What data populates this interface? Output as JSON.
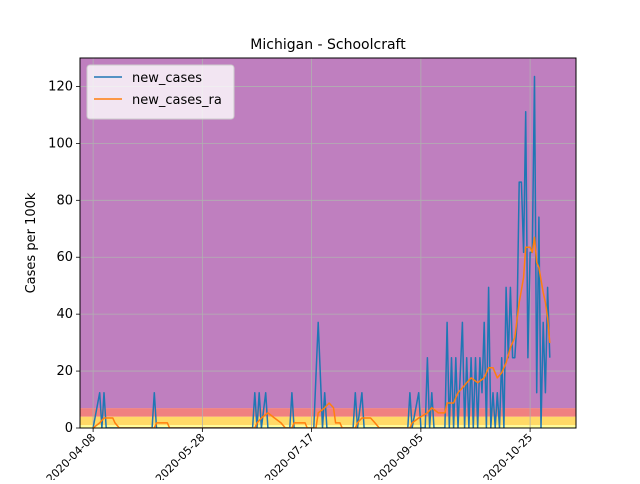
{
  "chart_data": {
    "type": "line",
    "title": "Michigan - Schoolcraft",
    "xlabel": "",
    "ylabel": "Cases per 100k",
    "x_start": "2020-04-02",
    "x_end": "2020-11-15",
    "ylim": [
      0,
      130
    ],
    "grid": true,
    "legend_position": "top-left",
    "x_ticks": [
      "2020-04-08",
      "2020-05-28",
      "2020-07-17",
      "2020-09-05",
      "2020-10-25"
    ],
    "y_ticks": [
      0,
      20,
      40,
      60,
      80,
      100,
      120
    ],
    "bands": [
      {
        "from": 0,
        "to": 1,
        "color": "#ffff99"
      },
      {
        "from": 1,
        "to": 4,
        "color": "#ffd966"
      },
      {
        "from": 4,
        "to": 7,
        "color": "#f08080"
      },
      {
        "from": 7,
        "to": 130,
        "color": "#bf7fbf"
      }
    ],
    "series": [
      {
        "name": "new_cases",
        "color": "#1f77b4",
        "points": [
          [
            "2020-04-08",
            0
          ],
          [
            "2020-04-11",
            12.4
          ],
          [
            "2020-04-12",
            0
          ],
          [
            "2020-04-13",
            12.4
          ],
          [
            "2020-04-14",
            0
          ],
          [
            "2020-05-05",
            0
          ],
          [
            "2020-05-06",
            12.4
          ],
          [
            "2020-05-07",
            0
          ],
          [
            "2020-06-20",
            0
          ],
          [
            "2020-06-21",
            12.4
          ],
          [
            "2020-06-22",
            0
          ],
          [
            "2020-06-23",
            12.4
          ],
          [
            "2020-06-24",
            0
          ],
          [
            "2020-06-26",
            12.4
          ],
          [
            "2020-06-27",
            0
          ],
          [
            "2020-07-07",
            0
          ],
          [
            "2020-07-08",
            12.4
          ],
          [
            "2020-07-09",
            0
          ],
          [
            "2020-07-18",
            0
          ],
          [
            "2020-07-20",
            37.1
          ],
          [
            "2020-07-22",
            0
          ],
          [
            "2020-07-23",
            12.4
          ],
          [
            "2020-07-24",
            0
          ],
          [
            "2020-08-05",
            0
          ],
          [
            "2020-08-06",
            12.4
          ],
          [
            "2020-08-07",
            0
          ],
          [
            "2020-08-09",
            12.4
          ],
          [
            "2020-08-10",
            0
          ],
          [
            "2020-08-30",
            0
          ],
          [
            "2020-08-31",
            12.4
          ],
          [
            "2020-09-01",
            0
          ],
          [
            "2020-09-04",
            12.4
          ],
          [
            "2020-09-05",
            0
          ],
          [
            "2020-09-07",
            0
          ],
          [
            "2020-09-08",
            24.7
          ],
          [
            "2020-09-09",
            0
          ],
          [
            "2020-09-10",
            12.4
          ],
          [
            "2020-09-11",
            0
          ],
          [
            "2020-09-16",
            0
          ],
          [
            "2020-09-17",
            37.1
          ],
          [
            "2020-09-18",
            0
          ],
          [
            "2020-09-19",
            24.7
          ],
          [
            "2020-09-20",
            0
          ],
          [
            "2020-09-21",
            24.7
          ],
          [
            "2020-09-22",
            0
          ],
          [
            "2020-09-24",
            37.1
          ],
          [
            "2020-09-25",
            0
          ],
          [
            "2020-09-26",
            24.7
          ],
          [
            "2020-09-27",
            0
          ],
          [
            "2020-09-28",
            24.7
          ],
          [
            "2020-09-29",
            0
          ],
          [
            "2020-09-30",
            24.7
          ],
          [
            "2020-10-01",
            0
          ],
          [
            "2020-10-02",
            24.7
          ],
          [
            "2020-10-03",
            12.4
          ],
          [
            "2020-10-04",
            37.1
          ],
          [
            "2020-10-05",
            0
          ],
          [
            "2020-10-06",
            49.4
          ],
          [
            "2020-10-07",
            0
          ],
          [
            "2020-10-08",
            12.4
          ],
          [
            "2020-10-09",
            0
          ],
          [
            "2020-10-10",
            12.4
          ],
          [
            "2020-10-11",
            0
          ],
          [
            "2020-10-12",
            24.7
          ],
          [
            "2020-10-13",
            0
          ],
          [
            "2020-10-14",
            49.4
          ],
          [
            "2020-10-15",
            24.7
          ],
          [
            "2020-10-16",
            49.4
          ],
          [
            "2020-10-17",
            24.7
          ],
          [
            "2020-10-18",
            24.7
          ],
          [
            "2020-10-19",
            37.1
          ],
          [
            "2020-10-20",
            86.4
          ],
          [
            "2020-10-21",
            86.4
          ],
          [
            "2020-10-22",
            61.7
          ],
          [
            "2020-10-23",
            111.1
          ],
          [
            "2020-10-24",
            24.7
          ],
          [
            "2020-10-25",
            61.7
          ],
          [
            "2020-10-26",
            61.7
          ],
          [
            "2020-10-27",
            123.5
          ],
          [
            "2020-10-28",
            12.4
          ],
          [
            "2020-10-29",
            74.1
          ],
          [
            "2020-10-30",
            0
          ],
          [
            "2020-10-31",
            37.1
          ],
          [
            "2020-11-01",
            12.4
          ],
          [
            "2020-11-02",
            49.4
          ],
          [
            "2020-11-03",
            24.7
          ]
        ]
      },
      {
        "name": "new_cases_ra",
        "color": "#ff7f0e",
        "points": [
          [
            "2020-04-08",
            0
          ],
          [
            "2020-04-11",
            1.8
          ],
          [
            "2020-04-13",
            3.5
          ],
          [
            "2020-04-17",
            3.5
          ],
          [
            "2020-04-18",
            1.8
          ],
          [
            "2020-04-20",
            0
          ],
          [
            "2020-05-06",
            0
          ],
          [
            "2020-05-07",
            1.8
          ],
          [
            "2020-05-12",
            1.8
          ],
          [
            "2020-05-13",
            0
          ],
          [
            "2020-06-21",
            0
          ],
          [
            "2020-06-22",
            1.8
          ],
          [
            "2020-06-24",
            3.5
          ],
          [
            "2020-06-27",
            5.3
          ],
          [
            "2020-06-30",
            3.5
          ],
          [
            "2020-07-03",
            1.8
          ],
          [
            "2020-07-05",
            0
          ],
          [
            "2020-07-08",
            0
          ],
          [
            "2020-07-09",
            1.8
          ],
          [
            "2020-07-14",
            1.8
          ],
          [
            "2020-07-15",
            0
          ],
          [
            "2020-07-19",
            0
          ],
          [
            "2020-07-20",
            5.3
          ],
          [
            "2020-07-23",
            7.1
          ],
          [
            "2020-07-25",
            8.8
          ],
          [
            "2020-07-27",
            7.1
          ],
          [
            "2020-07-28",
            1.8
          ],
          [
            "2020-07-30",
            1.8
          ],
          [
            "2020-07-31",
            0
          ],
          [
            "2020-08-06",
            0
          ],
          [
            "2020-08-07",
            1.8
          ],
          [
            "2020-08-09",
            3.5
          ],
          [
            "2020-08-13",
            3.5
          ],
          [
            "2020-08-15",
            1.8
          ],
          [
            "2020-08-17",
            0
          ],
          [
            "2020-08-31",
            0
          ],
          [
            "2020-09-01",
            1.8
          ],
          [
            "2020-09-04",
            3.5
          ],
          [
            "2020-09-08",
            5.3
          ],
          [
            "2020-09-10",
            7.1
          ],
          [
            "2020-09-13",
            5.3
          ],
          [
            "2020-09-16",
            5.3
          ],
          [
            "2020-09-17",
            8.8
          ],
          [
            "2020-09-20",
            8.8
          ],
          [
            "2020-09-22",
            12.4
          ],
          [
            "2020-09-24",
            14.1
          ],
          [
            "2020-09-26",
            15.9
          ],
          [
            "2020-09-28",
            17.6
          ],
          [
            "2020-10-01",
            15.9
          ],
          [
            "2020-10-04",
            17.6
          ],
          [
            "2020-10-06",
            21.2
          ],
          [
            "2020-10-08",
            21.2
          ],
          [
            "2020-10-10",
            17.6
          ],
          [
            "2020-10-12",
            19.4
          ],
          [
            "2020-10-14",
            22.9
          ],
          [
            "2020-10-16",
            28.2
          ],
          [
            "2020-10-18",
            31.8
          ],
          [
            "2020-10-20",
            44.1
          ],
          [
            "2020-10-22",
            52.9
          ],
          [
            "2020-10-23",
            63.5
          ],
          [
            "2020-10-25",
            63.5
          ],
          [
            "2020-10-26",
            61.7
          ],
          [
            "2020-10-27",
            67
          ],
          [
            "2020-10-28",
            58.2
          ],
          [
            "2020-10-29",
            56.4
          ],
          [
            "2020-10-31",
            47.6
          ],
          [
            "2020-11-01",
            44.1
          ],
          [
            "2020-11-02",
            38.8
          ],
          [
            "2020-11-03",
            29.9
          ]
        ]
      }
    ]
  }
}
